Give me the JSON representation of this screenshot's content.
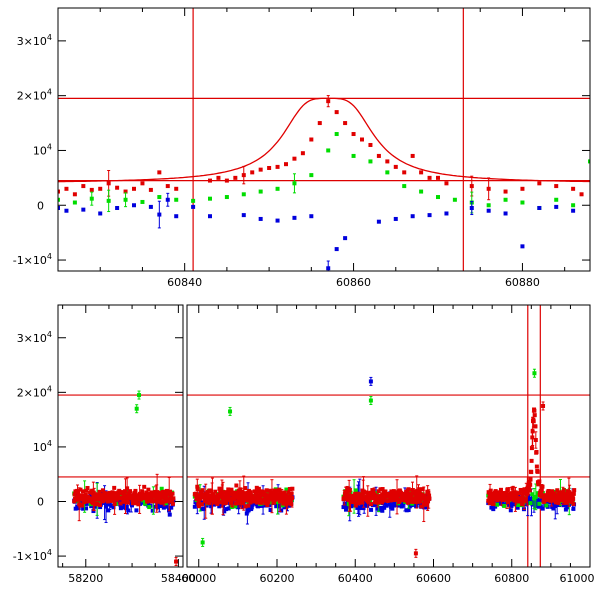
{
  "colors": {
    "red": "#e00000",
    "green": "#00dd00",
    "blue": "#0000dd",
    "frame": "#000000",
    "guide": "#dd0000"
  },
  "chart_data": [
    {
      "type": "scatter",
      "title": "",
      "xlabel": "",
      "ylabel": "",
      "xlim": [
        60825,
        60888
      ],
      "ylim": [
        -12000,
        36000
      ],
      "yticks": [
        {
          "value": -10000,
          "base": "-1×10",
          "exp": "4"
        },
        {
          "value": 0,
          "base": "0",
          "exp": ""
        },
        {
          "value": 10000,
          "base": "10",
          "exp": "4"
        },
        {
          "value": 20000,
          "base": "2×10",
          "exp": "4"
        },
        {
          "value": 30000,
          "base": "3×10",
          "exp": "4"
        }
      ],
      "xticks": [
        {
          "value": 60840,
          "label": "60840"
        },
        {
          "value": 60860,
          "label": "60860"
        },
        {
          "value": 60880,
          "label": "60880"
        }
      ],
      "hlines": [
        19500,
        4500
      ],
      "vlines": [
        60841,
        60873
      ],
      "model_curve": {
        "peak_x": 60857,
        "peak_y": 19500,
        "baseline": 4000,
        "width_days": 4.5
      },
      "series": [
        {
          "name": "red",
          "x": [
            60825,
            60826,
            60827,
            60828,
            60829,
            60830,
            60831,
            60832,
            60833,
            60834,
            60835,
            60836,
            60837,
            60838,
            60839,
            60843,
            60844,
            60845,
            60846,
            60847,
            60848,
            60849,
            60850,
            60851,
            60852,
            60853,
            60854,
            60855,
            60856,
            60857,
            60858,
            60859,
            60860,
            60861,
            60862,
            60863,
            60864,
            60865,
            60866,
            60867,
            60868,
            60869,
            60870,
            60871,
            60874,
            60876,
            60878,
            60880,
            60882,
            60884,
            60886,
            60887
          ],
          "y": [
            2500,
            3000,
            2000,
            3500,
            2800,
            3000,
            4000,
            3200,
            2500,
            3000,
            4000,
            2800,
            6000,
            3500,
            3000,
            4500,
            5000,
            4500,
            5000,
            5500,
            6000,
            6500,
            6800,
            7000,
            7500,
            8500,
            9500,
            12000,
            15000,
            19000,
            17000,
            15000,
            13000,
            12000,
            11000,
            9000,
            8000,
            7000,
            6000,
            9000,
            6000,
            5000,
            5000,
            4000,
            3500,
            3000,
            2500,
            3000,
            4000,
            3500,
            3000,
            2000
          ]
        },
        {
          "name": "green",
          "x": [
            60825,
            60827,
            60829,
            60831,
            60833,
            60835,
            60837,
            60839,
            60841,
            60843,
            60845,
            60847,
            60849,
            60851,
            60853,
            60855,
            60857,
            60858,
            60860,
            60862,
            60864,
            60866,
            60868,
            60870,
            60872,
            60874,
            60876,
            60878,
            60880,
            60882,
            60884,
            60886,
            60888
          ],
          "y": [
            1000,
            500,
            1200,
            800,
            1000,
            600,
            1500,
            1000,
            800,
            1200,
            1500,
            2000,
            2500,
            3000,
            4000,
            5500,
            10000,
            13000,
            9000,
            8000,
            6000,
            3500,
            2500,
            1500,
            1000,
            500,
            0,
            1000,
            500,
            -500,
            1000,
            0,
            8000
          ]
        },
        {
          "name": "blue",
          "x": [
            60825,
            60826,
            60828,
            60830,
            60832,
            60834,
            60836,
            60837,
            60838,
            60839,
            60841,
            60843,
            60847,
            60849,
            60851,
            60853,
            60855,
            60857,
            60858,
            60859,
            60863,
            60865,
            60867,
            60869,
            60871,
            60874,
            60876,
            60878,
            60880,
            60882,
            60884,
            60886
          ],
          "y": [
            -500,
            -1000,
            -800,
            -1500,
            -500,
            0,
            -300,
            -1700,
            1000,
            -2000,
            -300,
            -2000,
            -1800,
            -2500,
            -2800,
            -2300,
            -2000,
            -11500,
            -8000,
            -6000,
            -3000,
            -2500,
            -2000,
            -1800,
            -1500,
            -500,
            -1000,
            -1500,
            -7500,
            -500,
            -300,
            -1000
          ]
        }
      ]
    },
    {
      "type": "scatter",
      "title": "",
      "xlabel": "",
      "ylabel": "",
      "segments": [
        {
          "xlim": [
            58140,
            58410
          ],
          "xticks": [
            {
              "value": 58200,
              "label": "58200"
            },
            {
              "value": 58400,
              "label": "58400"
            }
          ]
        },
        {
          "xlim": [
            59970,
            61000
          ],
          "xticks": [
            {
              "value": 60000,
              "label": "60000"
            },
            {
              "value": 60200,
              "label": "60200"
            },
            {
              "value": 60400,
              "label": "60400"
            },
            {
              "value": 60600,
              "label": "60600"
            },
            {
              "value": 60800,
              "label": "60800"
            },
            {
              "value": 61000,
              "label": "61000"
            }
          ]
        }
      ],
      "ylim": [
        -12000,
        36000
      ],
      "yticks": [
        {
          "value": -10000,
          "base": "-1×10",
          "exp": "4"
        },
        {
          "value": 0,
          "base": "0",
          "exp": ""
        },
        {
          "value": 10000,
          "base": "10",
          "exp": "4"
        },
        {
          "value": 20000,
          "base": "2×10",
          "exp": "4"
        },
        {
          "value": 30000,
          "base": "3×10",
          "exp": "4"
        }
      ],
      "hlines": [
        19500,
        4500
      ],
      "vlines": [
        60841,
        60873
      ],
      "observing_seasons": [
        [
          58175,
          58390
        ],
        [
          59990,
          60240
        ],
        [
          60370,
          60590
        ],
        [
          60740,
          60960
        ]
      ],
      "notable_points": [
        {
          "series": "green",
          "x": 58315,
          "y": 19500
        },
        {
          "series": "green",
          "x": 58310,
          "y": 17000
        },
        {
          "series": "green",
          "x": 60080,
          "y": 16500
        },
        {
          "series": "blue",
          "x": 60440,
          "y": 22000
        },
        {
          "series": "green",
          "x": 60440,
          "y": 18500
        },
        {
          "series": "green",
          "x": 60858,
          "y": 23500
        },
        {
          "series": "red",
          "x": 60880,
          "y": 17500
        },
        {
          "series": "red",
          "x": 58395,
          "y": -11000
        },
        {
          "series": "red",
          "x": 60555,
          "y": -9500
        },
        {
          "series": "green",
          "x": 60010,
          "y": -7500
        }
      ]
    }
  ]
}
